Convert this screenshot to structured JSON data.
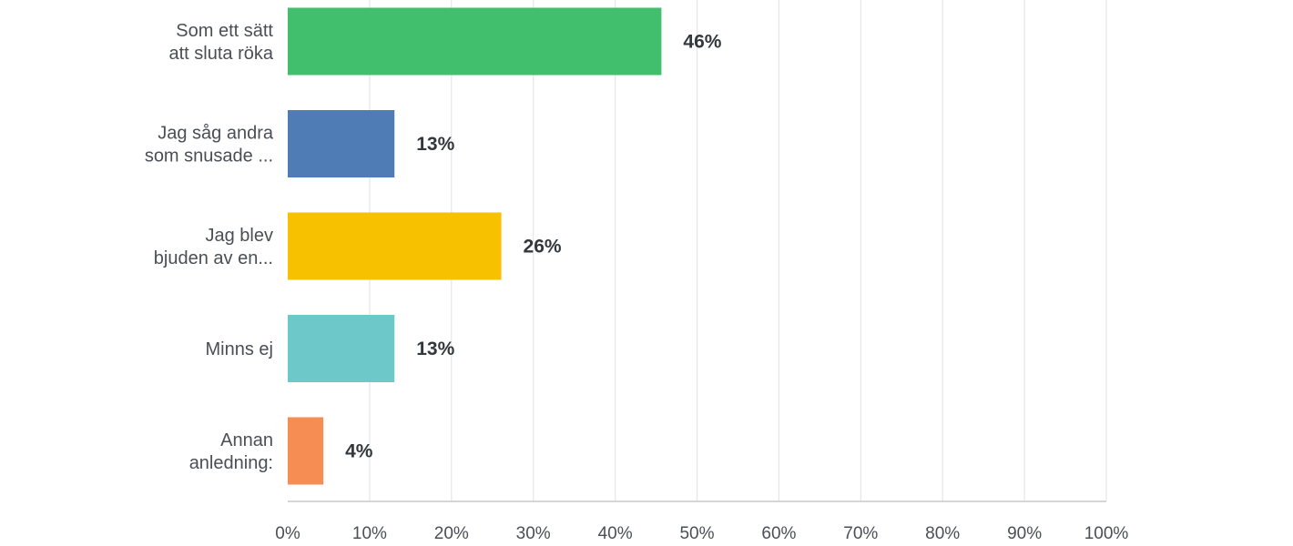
{
  "chart_data": {
    "type": "bar",
    "orientation": "horizontal",
    "categories": [
      [
        "Som ett sätt",
        "att sluta röka"
      ],
      [
        "Jag såg andra",
        "som snusade ..."
      ],
      [
        "Jag blev",
        "bjuden av en..."
      ],
      [
        "Minns ej"
      ],
      [
        "Annan",
        "anledning:"
      ]
    ],
    "values": [
      45.65,
      13.04,
      26.09,
      13.04,
      4.35
    ],
    "value_labels": [
      "46%",
      "13%",
      "26%",
      "13%",
      "4%"
    ],
    "colors": [
      "#42bf6c",
      "#507cb6",
      "#f7c100",
      "#6cc8c9",
      "#f68d53"
    ],
    "xlim": [
      0,
      100
    ],
    "x_ticks": [
      "0%",
      "10%",
      "20%",
      "30%",
      "40%",
      "50%",
      "60%",
      "70%",
      "80%",
      "90%",
      "100%"
    ],
    "grid": true,
    "legend": "none"
  }
}
